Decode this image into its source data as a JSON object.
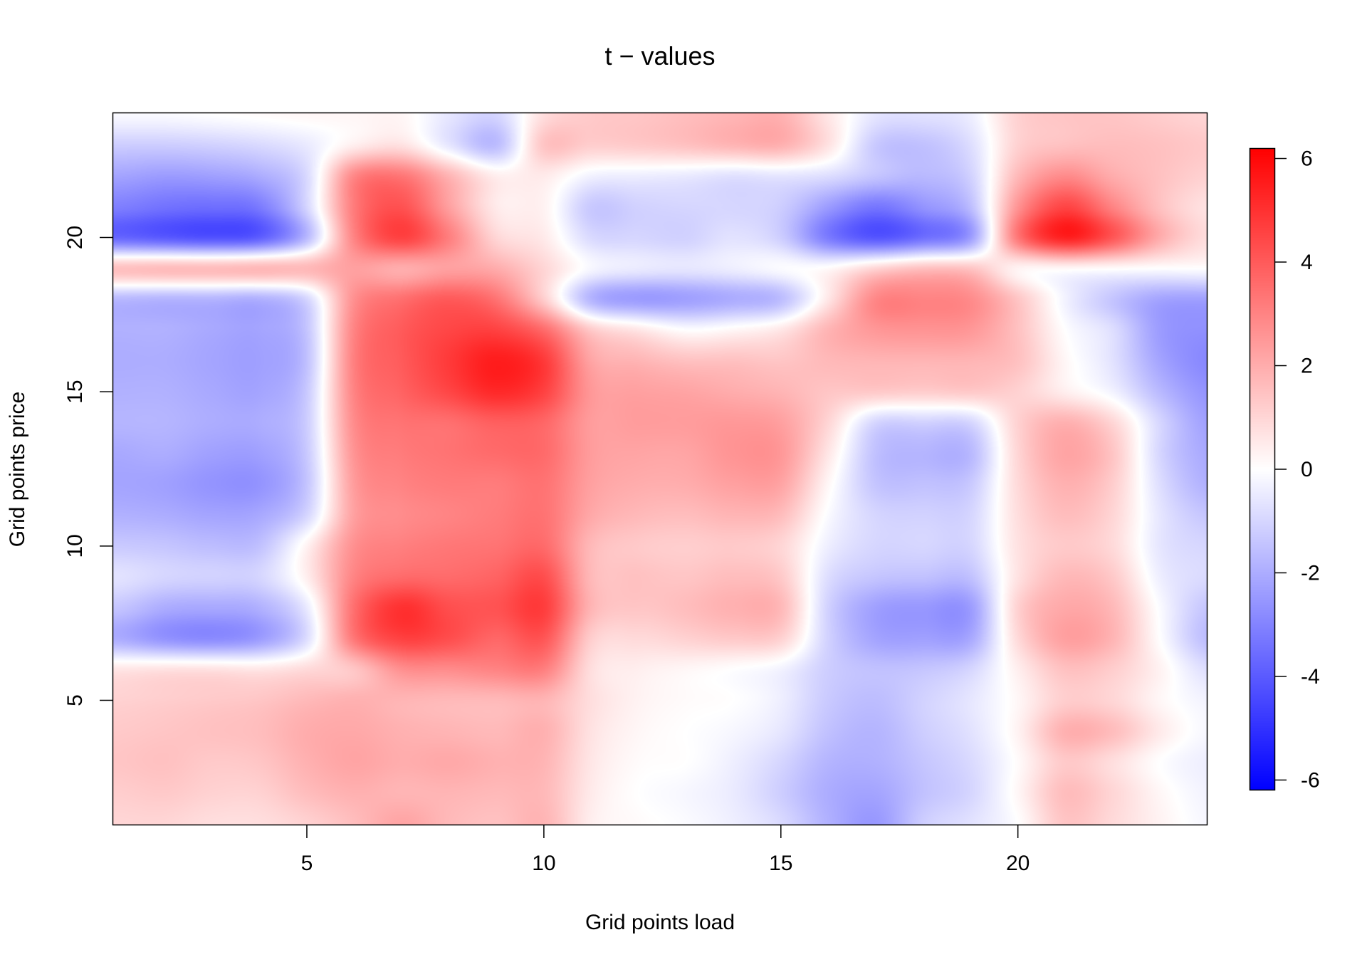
{
  "chart_data": {
    "type": "heatmap",
    "title": "t − values",
    "xlabel": "Grid points load",
    "ylabel": "Grid points price",
    "x": [
      1,
      2,
      3,
      4,
      5,
      6,
      7,
      8,
      9,
      10,
      11,
      12,
      13,
      14,
      15,
      16,
      17,
      18,
      19,
      20,
      21,
      22,
      23,
      24
    ],
    "y": [
      1,
      2,
      3,
      4,
      5,
      6,
      7,
      8,
      9,
      10,
      11,
      12,
      13,
      14,
      15,
      16,
      17,
      18,
      19,
      20,
      21,
      22,
      23,
      24
    ],
    "xlim": [
      0.9,
      24
    ],
    "ylim": [
      0.95,
      24.05
    ],
    "x_ticks": [
      5,
      10,
      15,
      20
    ],
    "y_ticks": [
      5,
      10,
      15,
      20
    ],
    "colorbar": {
      "range": [
        -6.2,
        6.2
      ],
      "ticks": [
        6,
        4,
        2,
        0,
        -2,
        -4,
        -6
      ],
      "tick_labels": [
        "6",
        "4",
        "2",
        "0",
        "-2",
        "-4",
        "-6"
      ],
      "low_color": "#0000ff",
      "mid_color": "#ffffff",
      "high_color": "#ff0000"
    },
    "legend_placement": "right",
    "grid": false,
    "z": [
      [
        1.0,
        1.0,
        0.8,
        0.8,
        1.1,
        1.6,
        2.2,
        1.7,
        1.5,
        1.8,
        0.4,
        0.1,
        -0.1,
        -0.4,
        -0.9,
        -1.9,
        -2.5,
        -1.2,
        -0.7,
        0.0,
        1.4,
        0.9,
        0.3,
        -0.2
      ],
      [
        1.2,
        1.3,
        1.1,
        1.1,
        1.6,
        1.9,
        1.8,
        1.8,
        1.7,
        1.7,
        0.5,
        0.0,
        -0.2,
        -0.5,
        -1.2,
        -2.0,
        -2.2,
        -1.5,
        -1.0,
        0.2,
        1.6,
        1.0,
        0.2,
        -0.3
      ],
      [
        1.4,
        1.5,
        1.3,
        1.4,
        1.9,
        2.2,
        2.0,
        2.1,
        1.9,
        1.8,
        0.6,
        0.1,
        0.0,
        -0.4,
        -1.0,
        -1.8,
        -1.9,
        -1.4,
        -0.9,
        0.1,
        1.3,
        0.8,
        0.0,
        -0.4
      ],
      [
        1.3,
        1.4,
        1.5,
        1.6,
        2.0,
        2.1,
        1.9,
        1.8,
        1.7,
        1.9,
        0.7,
        0.2,
        0.0,
        -0.2,
        -0.6,
        -1.5,
        -1.8,
        -1.2,
        -0.7,
        0.3,
        1.9,
        1.6,
        0.5,
        -0.2
      ],
      [
        1.1,
        1.2,
        1.3,
        1.4,
        1.7,
        1.9,
        1.8,
        1.7,
        1.7,
        1.8,
        0.8,
        0.3,
        0.1,
        0.0,
        -0.4,
        -1.3,
        -1.6,
        -1.1,
        -0.6,
        0.2,
        1.2,
        1.0,
        0.2,
        -0.3
      ],
      [
        0.6,
        0.7,
        0.7,
        0.6,
        0.9,
        1.4,
        2.7,
        2.8,
        3.0,
        3.1,
        0.8,
        0.4,
        0.2,
        0.0,
        -0.3,
        -1.2,
        -1.5,
        -1.4,
        -1.0,
        0.4,
        1.5,
        1.2,
        0.3,
        -0.8
      ],
      [
        -2.0,
        -2.6,
        -2.8,
        -2.4,
        -0.8,
        3.3,
        4.6,
        4.3,
        3.7,
        4.1,
        1.2,
        0.9,
        1.1,
        1.3,
        1.1,
        -1.1,
        -2.2,
        -2.3,
        -2.1,
        0.9,
        2.3,
        1.8,
        0.0,
        -1.6
      ],
      [
        -1.4,
        -2.0,
        -2.1,
        -1.9,
        -0.5,
        3.5,
        5.0,
        4.3,
        4.2,
        4.7,
        1.8,
        1.4,
        1.6,
        1.9,
        1.7,
        -1.1,
        -2.3,
        -2.5,
        -2.4,
        1.1,
        2.1,
        1.7,
        -0.1,
        -1.4
      ],
      [
        -0.7,
        -1.0,
        -1.1,
        -1.0,
        0.4,
        3.0,
        3.6,
        3.6,
        3.8,
        4.3,
        1.7,
        1.5,
        1.4,
        1.6,
        1.3,
        -0.8,
        -1.4,
        -1.5,
        -1.5,
        0.7,
        1.7,
        1.3,
        -0.4,
        -0.9
      ],
      [
        -1.3,
        -1.4,
        -1.6,
        -1.5,
        0.3,
        2.7,
        3.1,
        3.3,
        3.4,
        3.6,
        1.7,
        1.3,
        1.2,
        1.3,
        1.0,
        -0.4,
        -1.0,
        -1.0,
        -1.0,
        0.7,
        1.3,
        0.9,
        -0.6,
        -1.0
      ],
      [
        -1.9,
        -2.0,
        -2.2,
        -2.1,
        -1.0,
        2.3,
        2.8,
        3.0,
        3.2,
        3.4,
        2.1,
        1.7,
        1.6,
        1.8,
        1.6,
        -0.1,
        -1.0,
        -1.1,
        -1.0,
        0.8,
        1.6,
        1.0,
        -0.6,
        -1.4
      ],
      [
        -2.2,
        -2.3,
        -2.6,
        -2.6,
        -1.4,
        2.4,
        3.0,
        3.2,
        3.2,
        3.4,
        2.3,
        2.0,
        2.0,
        2.3,
        2.2,
        0.2,
        -1.4,
        -1.5,
        -1.3,
        0.9,
        1.9,
        1.2,
        -0.8,
        -1.9
      ],
      [
        -2.1,
        -2.0,
        -2.3,
        -2.3,
        -1.3,
        2.6,
        3.2,
        3.4,
        3.6,
        3.6,
        2.4,
        2.2,
        2.2,
        2.6,
        2.5,
        0.6,
        -1.5,
        -1.8,
        -1.7,
        1.0,
        2.2,
        1.4,
        -1.0,
        -2.1
      ],
      [
        -1.8,
        -1.8,
        -2.0,
        -2.0,
        -1.2,
        2.8,
        3.4,
        3.5,
        3.9,
        3.7,
        2.4,
        2.4,
        2.4,
        2.5,
        2.3,
        1.0,
        -1.0,
        -1.1,
        -1.0,
        1.1,
        1.9,
        1.0,
        -1.0,
        -2.3
      ],
      [
        -1.9,
        -1.9,
        -2.1,
        -2.2,
        -1.3,
        3.0,
        3.8,
        4.5,
        5.2,
        4.6,
        2.5,
        2.3,
        2.2,
        2.0,
        1.8,
        1.4,
        1.3,
        1.2,
        1.3,
        1.1,
        0.4,
        -0.3,
        -1.7,
        -2.6
      ],
      [
        -2.0,
        -2.0,
        -2.2,
        -2.3,
        -1.5,
        3.1,
        4.0,
        4.8,
        5.5,
        4.8,
        2.2,
        1.8,
        1.5,
        1.5,
        1.4,
        1.7,
        1.8,
        1.8,
        1.8,
        1.5,
        0.2,
        -0.7,
        -2.2,
        -2.9
      ],
      [
        -1.9,
        -1.9,
        -2.1,
        -2.2,
        -1.4,
        3.0,
        4.0,
        4.5,
        4.6,
        3.6,
        1.3,
        0.6,
        0.0,
        0.2,
        0.6,
        1.8,
        2.5,
        2.6,
        2.5,
        1.5,
        0.0,
        -0.8,
        -2.4,
        -2.7
      ],
      [
        -1.7,
        -1.8,
        -1.8,
        -1.9,
        -1.0,
        2.7,
        3.5,
        4.0,
        3.4,
        1.2,
        -1.8,
        -2.4,
        -2.3,
        -2.0,
        -1.6,
        0.6,
        2.9,
        3.0,
        2.8,
        1.4,
        -0.3,
        -1.4,
        -2.2,
        -2.3
      ],
      [
        1.5,
        1.6,
        1.6,
        1.7,
        1.7,
        2.3,
        2.0,
        2.3,
        2.0,
        1.0,
        -0.2,
        -0.5,
        -0.6,
        -0.4,
        -0.1,
        0.1,
        1.0,
        1.5,
        1.4,
        0.3,
        0.2,
        0.1,
        0.0,
        0.0
      ],
      [
        -3.7,
        -4.0,
        -4.2,
        -3.9,
        -1.7,
        3.0,
        4.6,
        3.1,
        1.0,
        0.5,
        -0.9,
        -1.0,
        -1.1,
        -0.7,
        -1.2,
        -3.2,
        -4.1,
        -3.5,
        -2.4,
        3.3,
        5.4,
        4.1,
        2.0,
        0.8
      ],
      [
        -3.1,
        -3.4,
        -3.5,
        -3.2,
        -1.0,
        3.2,
        4.2,
        2.3,
        0.5,
        0.3,
        -1.3,
        -1.1,
        -1.0,
        -1.0,
        -1.2,
        -2.4,
        -3.3,
        -2.6,
        -1.6,
        2.6,
        4.5,
        3.0,
        1.5,
        0.7
      ],
      [
        -2.2,
        -2.4,
        -2.3,
        -2.0,
        -0.9,
        2.9,
        3.3,
        1.8,
        0.4,
        0.5,
        -0.3,
        -0.4,
        -0.5,
        -0.7,
        -0.6,
        -0.8,
        -1.4,
        -1.7,
        -1.1,
        1.7,
        2.8,
        2.0,
        1.5,
        1.1
      ],
      [
        -1.2,
        -1.2,
        -1.1,
        -0.9,
        -0.5,
        0.4,
        0.7,
        -0.6,
        -1.6,
        1.4,
        1.2,
        1.3,
        1.5,
        1.8,
        1.9,
        0.7,
        -1.3,
        -1.5,
        -0.8,
        1.1,
        1.5,
        1.6,
        1.5,
        1.3
      ],
      [
        -0.1,
        -0.1,
        0.0,
        0.1,
        0.2,
        0.2,
        0.2,
        -0.6,
        -1.0,
        0.8,
        1.3,
        1.4,
        1.6,
        1.8,
        1.9,
        0.6,
        -0.6,
        -0.7,
        -0.4,
        1.1,
        1.4,
        1.4,
        1.2,
        1.0
      ]
    ]
  }
}
